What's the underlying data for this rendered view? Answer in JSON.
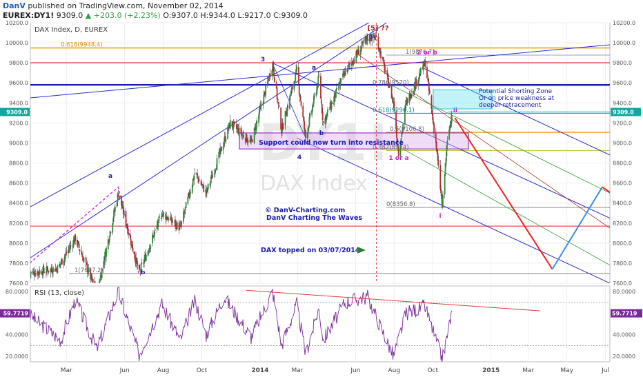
{
  "header": {
    "author": "DanV",
    "published": "published on TradingView.com, November 02, 2014",
    "symbol": "EUREX:DY1!",
    "last": "9309.0",
    "change": "▲ +203.0 (+2.23%)",
    "ohlc": {
      "o": "O:9307.0",
      "h": "H:9344.0",
      "l": "L:9217.0",
      "c": "C:9309.0"
    }
  },
  "chart_data": [
    {
      "type": "candlestick",
      "title": "DAX Index, D, EUREX",
      "watermark": [
        "DY1!",
        "DAX Index"
      ],
      "x_ticks": [
        "Mar",
        "Jun",
        "Aug",
        "Oct",
        "2014",
        "Mar",
        "Jun",
        "Aug",
        "Oct",
        "2015",
        "Mar",
        "May",
        "Jul"
      ],
      "ylim": [
        7600,
        10200
      ],
      "y_ticks": [
        7600,
        7800,
        8000,
        8200,
        8400,
        8600,
        8800,
        9000,
        9200,
        9400,
        9600,
        9800,
        10000,
        10200
      ],
      "y_tick_labels": [
        "7600.0",
        "7800.0",
        "8000.0",
        "8200.0",
        "8400.0",
        "8600.0",
        "8800.0",
        "9000.0",
        "9200.0",
        "9400.0",
        "9600.0",
        "9800.0",
        "10000.0",
        "10200.0"
      ],
      "last_price_label": "9309.0",
      "price_path": [
        [
          "2013-01-02",
          7700
        ],
        [
          "2013-02-15",
          7750
        ],
        [
          "2013-03-15",
          8050
        ],
        [
          "2013-04-18",
          7500
        ],
        [
          "2013-05-22",
          8500
        ],
        [
          "2013-06-24",
          7700
        ],
        [
          "2013-07-30",
          8300
        ],
        [
          "2013-08-28",
          8150
        ],
        [
          "2013-09-20",
          8700
        ],
        [
          "2013-10-08",
          8500
        ],
        [
          "2013-11-15",
          9200
        ],
        [
          "2013-12-18",
          9000
        ],
        [
          "2014-01-21",
          9790
        ],
        [
          "2014-02-04",
          9130
        ],
        [
          "2014-02-28",
          9720
        ],
        [
          "2014-03-14",
          9050
        ],
        [
          "2014-04-04",
          9650
        ],
        [
          "2014-04-11",
          9200
        ],
        [
          "2014-05-15",
          9700
        ],
        [
          "2014-06-20",
          10050
        ],
        [
          "2014-07-04",
          10050
        ],
        [
          "2014-07-31",
          9400
        ],
        [
          "2014-08-08",
          8900
        ],
        [
          "2014-08-20",
          9400
        ],
        [
          "2014-09-19",
          9800
        ],
        [
          "2014-10-06",
          9000
        ],
        [
          "2014-10-16",
          8360
        ],
        [
          "2014-10-23",
          8950
        ],
        [
          "2014-10-31",
          9309
        ]
      ],
      "fib_levels": [
        {
          "label": "0.618(9948.4)",
          "value": 9948.4
        },
        {
          "label": "1(9876.7)",
          "value": 9876.7
        },
        {
          "label": "0.786(9570)",
          "value": 9570
        },
        {
          "label": "0.618(9296.1)",
          "value": 9296.1
        },
        {
          "label": "0.5(9106.8)",
          "value": 9106.8
        },
        {
          "label": "0.382(8924)",
          "value": 8924
        },
        {
          "label": "0(8356.8)",
          "value": 8356.8
        },
        {
          "label": "1(7697.2)",
          "value": 7697.2
        }
      ],
      "horizontal_lines": [
        9800,
        9580,
        8170
      ],
      "wave_labels": [
        "a",
        "b",
        "3",
        "4",
        "a",
        "b",
        "[5] ??",
        "5",
        "2 or b",
        "1 or a",
        "ii",
        "i"
      ],
      "annotations": {
        "shorting_zone": [
          "Potential Shorting Zone",
          "Or on price weakness at",
          "deeper retracement"
        ],
        "support": "Support could now turn into resistance",
        "copyright": [
          "© DanV-Charting.com",
          "DanV Charting The Waves"
        ],
        "topped": "DAX topped on 03/07/2014"
      },
      "projection": [
        [
          "2014-11-05",
          9250
        ],
        [
          "2015-04-08",
          7740
        ],
        [
          "2015-06-26",
          8560
        ],
        [
          "2015-07-21",
          8450
        ]
      ]
    },
    {
      "type": "line",
      "title": "RSI (13, close)",
      "ylim": [
        15,
        85
      ],
      "y_tick_labels": [
        "80.0000",
        "60.0000",
        "40.0000",
        "20.0000"
      ],
      "last_value_label": "59.7719",
      "rsi_path": [
        [
          "2013-01-02",
          58
        ],
        [
          "2013-02-20",
          35
        ],
        [
          "2013-03-15",
          72
        ],
        [
          "2013-04-18",
          27
        ],
        [
          "2013-05-22",
          80
        ],
        [
          "2013-06-24",
          22
        ],
        [
          "2013-07-30",
          68
        ],
        [
          "2013-08-28",
          35
        ],
        [
          "2013-09-20",
          72
        ],
        [
          "2013-10-08",
          40
        ],
        [
          "2013-11-05",
          75
        ],
        [
          "2013-12-18",
          38
        ],
        [
          "2014-01-21",
          80
        ],
        [
          "2014-02-04",
          30
        ],
        [
          "2014-02-28",
          68
        ],
        [
          "2014-03-14",
          22
        ],
        [
          "2014-04-04",
          64
        ],
        [
          "2014-04-11",
          35
        ],
        [
          "2014-05-15",
          70
        ],
        [
          "2014-06-20",
          75
        ],
        [
          "2014-07-31",
          20
        ],
        [
          "2014-08-20",
          60
        ],
        [
          "2014-09-19",
          66
        ],
        [
          "2014-10-16",
          17
        ],
        [
          "2014-10-31",
          59.8
        ]
      ]
    }
  ]
}
